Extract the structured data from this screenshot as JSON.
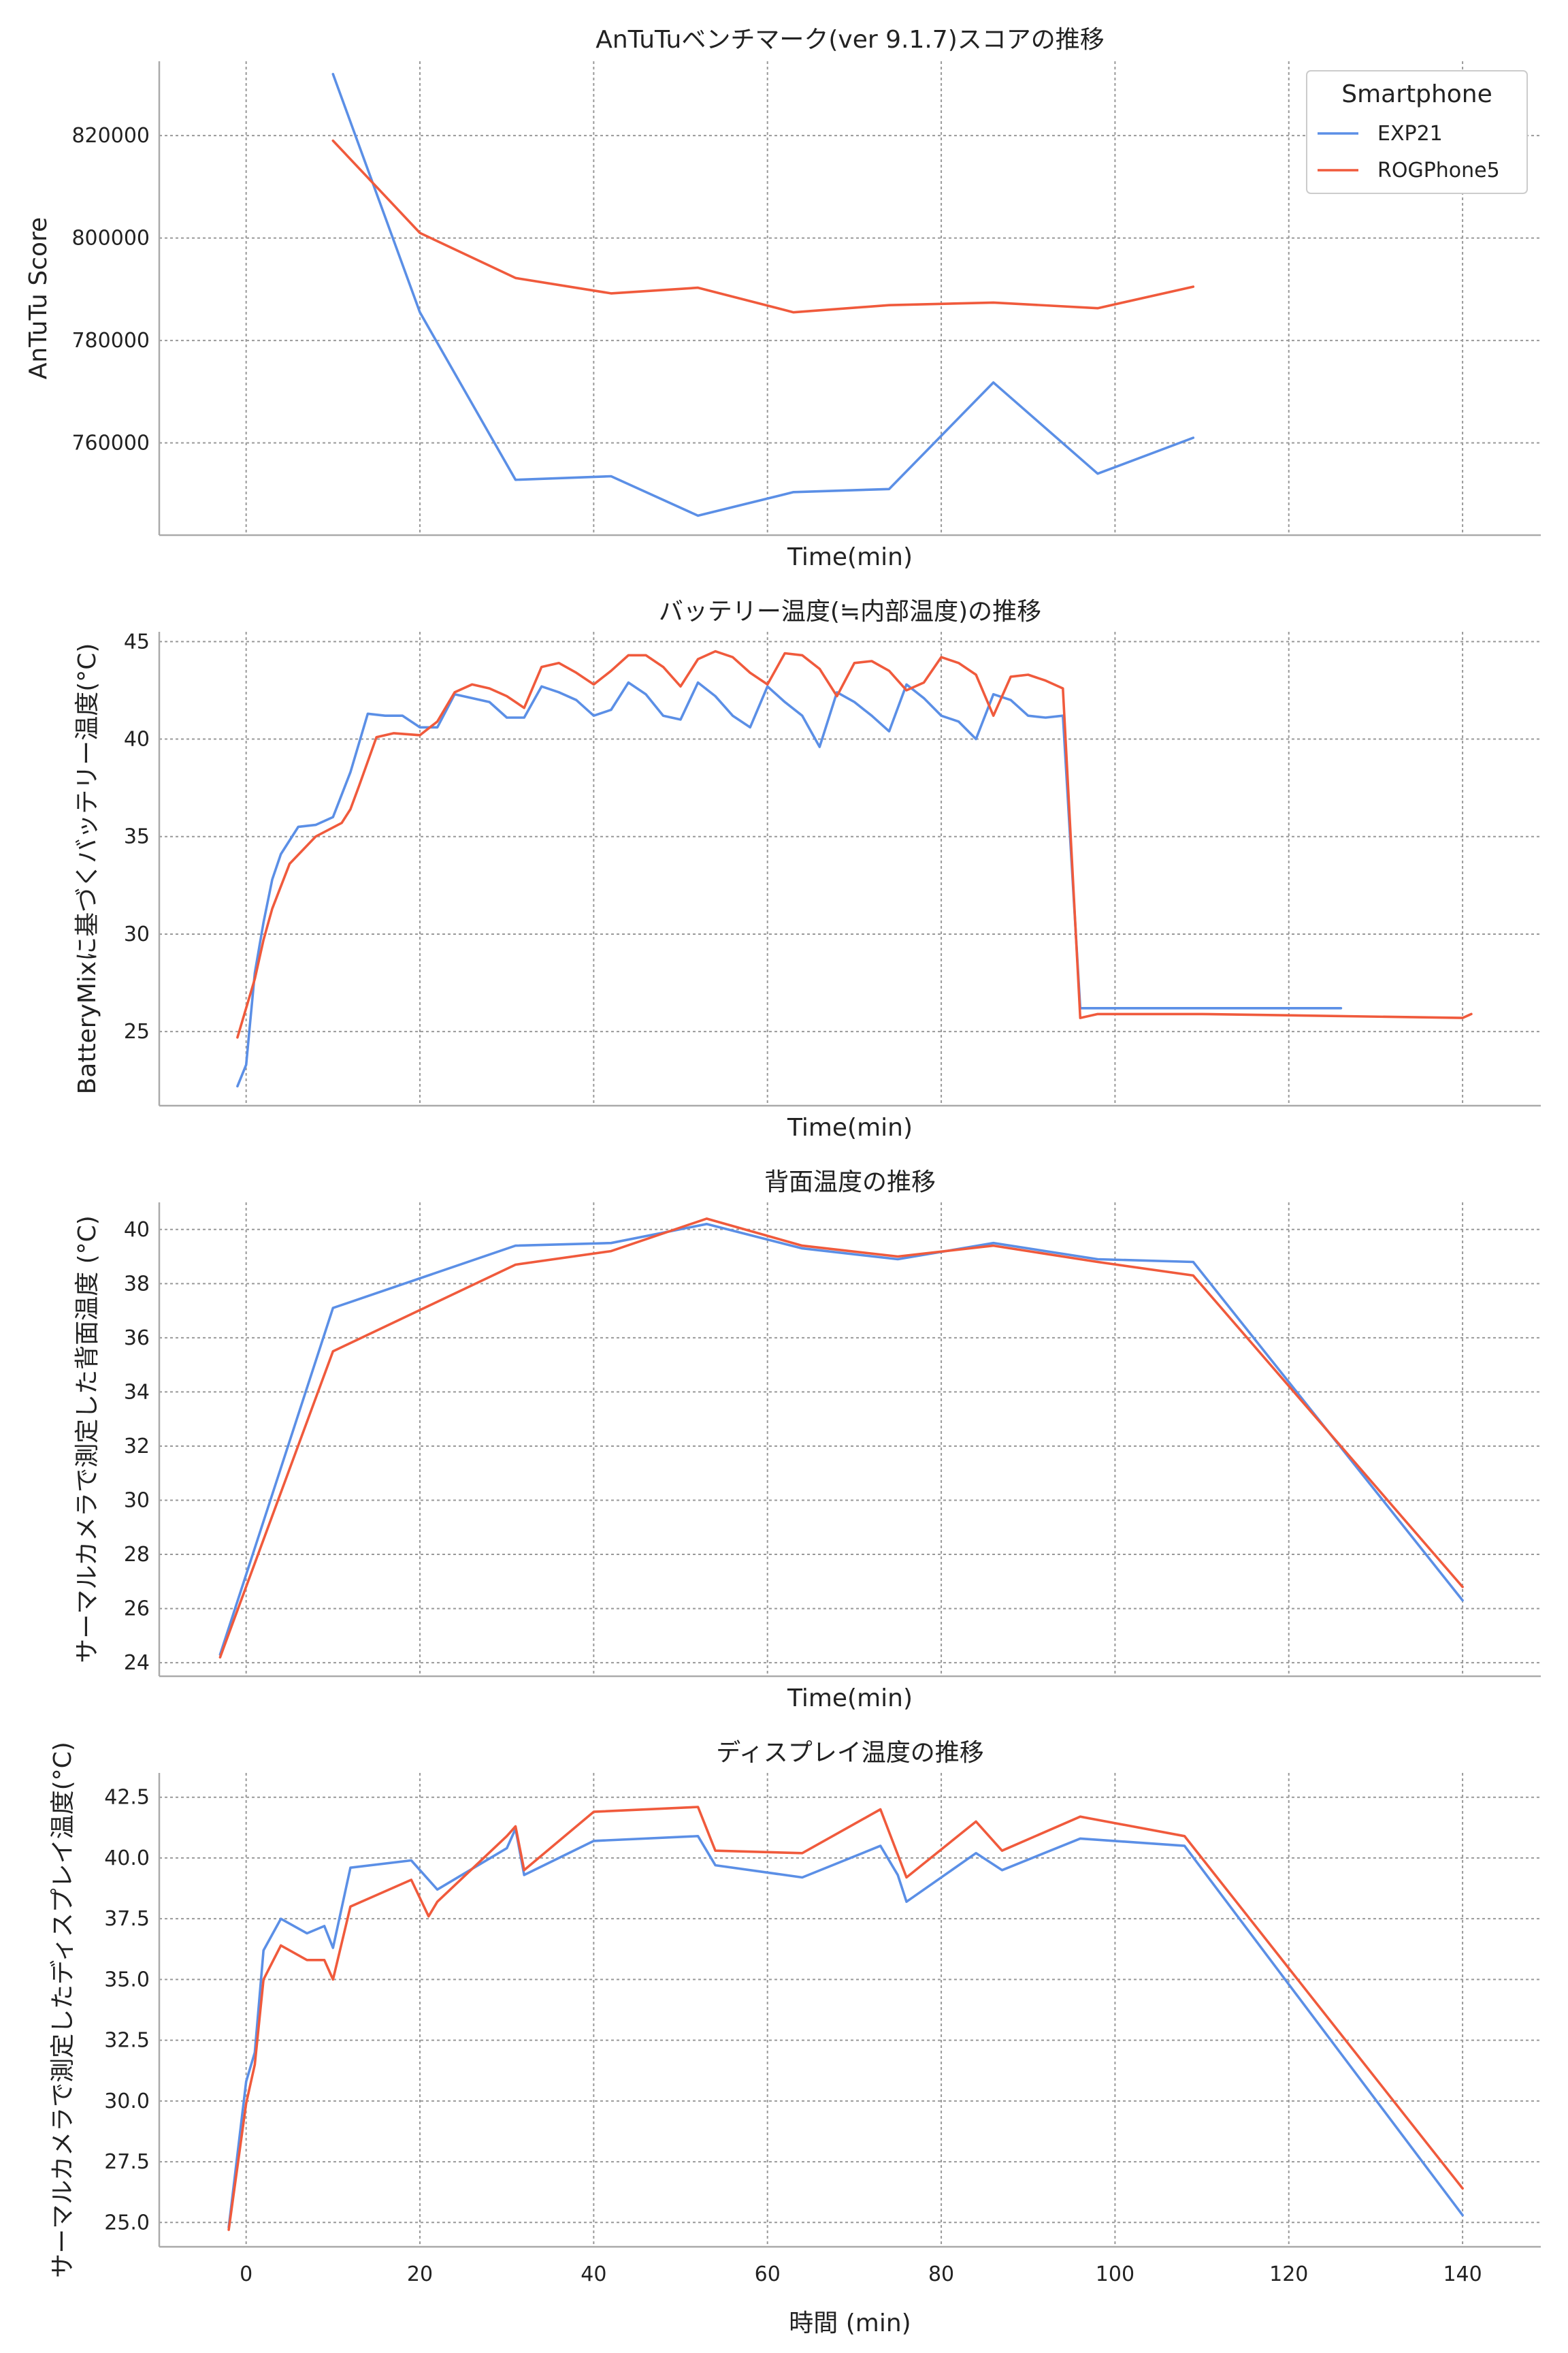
{
  "colors": {
    "EXP21": "#5b8fe6",
    "ROGPhone5": "#f05a3c"
  },
  "x_tick_labels": [
    "0",
    "20",
    "40",
    "60",
    "80",
    "100",
    "120",
    "140"
  ],
  "chart_data": [
    {
      "type": "line",
      "title": "AnTuTuベンチマーク(ver 9.1.7)スコアの推移",
      "xlabel": "Time(min)",
      "ylabel": "AnTuTu Score",
      "xlim": [
        -10,
        149
      ],
      "ylim": [
        742000,
        834500
      ],
      "yticks": [
        760000,
        780000,
        800000,
        820000
      ],
      "ytick_labels": [
        "760000",
        "780000",
        "800000",
        "820000"
      ],
      "grid": true,
      "legend": {
        "title": "Smartphone",
        "placement": "top-right"
      },
      "series": [
        {
          "name": "EXP21",
          "x": [
            10,
            20,
            31,
            42,
            52,
            63,
            74,
            86,
            98,
            109
          ],
          "y": [
            832000,
            785500,
            752800,
            753500,
            745800,
            750400,
            751000,
            771800,
            754000,
            761000
          ]
        },
        {
          "name": "ROGPhone5",
          "x": [
            10,
            20,
            31,
            42,
            52,
            63,
            74,
            86,
            98,
            109
          ],
          "y": [
            819000,
            801000,
            792200,
            789200,
            790300,
            785500,
            786900,
            787400,
            786300,
            790500
          ]
        }
      ]
    },
    {
      "type": "line",
      "title": "バッテリー温度(≒内部温度)の推移",
      "xlabel": "Time(min)",
      "ylabel": "BatteryMixに基づくバッテリー温度(°C)",
      "xlim": [
        -10,
        149
      ],
      "ylim": [
        21.2,
        45.5
      ],
      "yticks": [
        25,
        30,
        35,
        40,
        45
      ],
      "ytick_labels": [
        "25",
        "30",
        "35",
        "40",
        "45"
      ],
      "grid": true,
      "series": [
        {
          "name": "EXP21",
          "x": [
            -1,
            0,
            1,
            2,
            3,
            4,
            6,
            8,
            10,
            12,
            14,
            16,
            18,
            20,
            22,
            24,
            26,
            28,
            30,
            32,
            34,
            36,
            38,
            40,
            42,
            44,
            46,
            48,
            50,
            52,
            54,
            56,
            58,
            60,
            62,
            64,
            66,
            68,
            70,
            72,
            74,
            76,
            78,
            80,
            82,
            84,
            86,
            88,
            90,
            92,
            94,
            96,
            98,
            100,
            102,
            104,
            106,
            108,
            110,
            126
          ],
          "y": [
            22.2,
            23.3,
            28.0,
            30.6,
            32.8,
            34.1,
            35.5,
            35.6,
            36.0,
            38.3,
            41.3,
            41.2,
            41.2,
            40.6,
            40.6,
            42.3,
            42.1,
            41.9,
            41.1,
            41.1,
            42.7,
            42.4,
            42.0,
            41.2,
            41.5,
            42.9,
            42.3,
            41.2,
            41.0,
            42.9,
            42.2,
            41.2,
            40.6,
            42.7,
            41.9,
            41.2,
            39.6,
            42.4,
            41.9,
            41.2,
            40.4,
            42.8,
            42.1,
            41.2,
            40.9,
            40.0,
            42.3,
            42.0,
            41.2,
            41.1,
            41.2,
            26.2,
            26.2,
            26.2,
            26.2,
            26.2,
            26.2,
            26.2,
            26.2,
            26.2
          ]
        },
        {
          "name": "ROGPhone5",
          "x": [
            -1,
            1,
            2,
            3,
            5,
            8,
            11,
            12,
            13,
            15,
            17,
            20,
            22,
            24,
            26,
            28,
            30,
            32,
            34,
            36,
            38,
            40,
            42,
            44,
            46,
            48,
            50,
            52,
            54,
            56,
            58,
            60,
            62,
            64,
            66,
            68,
            70,
            72,
            74,
            76,
            78,
            80,
            82,
            84,
            86,
            88,
            90,
            92,
            94,
            96,
            98,
            100,
            102,
            104,
            106,
            108,
            110,
            140,
            141
          ],
          "y": [
            24.7,
            27.7,
            29.7,
            31.3,
            33.6,
            35.0,
            35.7,
            36.4,
            37.6,
            40.1,
            40.3,
            40.2,
            40.9,
            42.4,
            42.8,
            42.6,
            42.2,
            41.6,
            43.7,
            43.9,
            43.4,
            42.8,
            43.5,
            44.3,
            44.3,
            43.7,
            42.7,
            44.1,
            44.5,
            44.2,
            43.4,
            42.8,
            44.4,
            44.3,
            43.6,
            42.2,
            43.9,
            44.0,
            43.5,
            42.5,
            42.9,
            44.2,
            43.9,
            43.3,
            41.2,
            43.2,
            43.3,
            43.0,
            42.6,
            25.7,
            25.9,
            25.9,
            25.9,
            25.9,
            25.9,
            25.9,
            25.9,
            25.7,
            25.9
          ]
        }
      ]
    },
    {
      "type": "line",
      "title": "背面温度の推移",
      "xlabel": "Time(min)",
      "ylabel": "サーマルカメラで測定した背面温度 (°C)",
      "xlim": [
        -10,
        149
      ],
      "ylim": [
        23.5,
        41.0
      ],
      "yticks": [
        24,
        26,
        28,
        30,
        32,
        34,
        36,
        38,
        40
      ],
      "ytick_labels": [
        "24",
        "26",
        "28",
        "30",
        "32",
        "34",
        "36",
        "38",
        "40"
      ],
      "grid": true,
      "series": [
        {
          "name": "EXP21",
          "x": [
            -3,
            10,
            31,
            42,
            53,
            64,
            75,
            86,
            98,
            109,
            140
          ],
          "y": [
            24.3,
            37.1,
            39.4,
            39.5,
            40.2,
            39.3,
            38.9,
            39.5,
            38.9,
            38.8,
            26.3
          ]
        },
        {
          "name": "ROGPhone5",
          "x": [
            -3,
            10,
            31,
            42,
            53,
            64,
            75,
            86,
            98,
            109,
            140
          ],
          "y": [
            24.2,
            35.5,
            38.7,
            39.2,
            40.4,
            39.4,
            39.0,
            39.4,
            38.8,
            38.3,
            26.8
          ]
        }
      ]
    },
    {
      "type": "line",
      "title": "ディスプレイ温度の推移",
      "xlabel": "時間 (min)",
      "ylabel": "サーマルカメラで測定したディスプレイ温度(°C)",
      "xlim": [
        -10,
        149
      ],
      "ylim": [
        24.0,
        43.5
      ],
      "yticks": [
        25.0,
        27.5,
        30.0,
        32.5,
        35.0,
        37.5,
        40.0,
        42.5
      ],
      "ytick_labels": [
        "25.0",
        "27.5",
        "30.0",
        "32.5",
        "35.0",
        "37.5",
        "40.0",
        "42.5"
      ],
      "grid": true,
      "series": [
        {
          "name": "EXP21",
          "x": [
            -2,
            0,
            1,
            2,
            4,
            7,
            9,
            10,
            12,
            19,
            22,
            30,
            31,
            32,
            40,
            52,
            54,
            64,
            73,
            75,
            76,
            84,
            87,
            96,
            108,
            140
          ],
          "y": [
            24.8,
            30.8,
            32.0,
            36.2,
            37.5,
            36.9,
            37.2,
            36.3,
            39.6,
            39.9,
            38.7,
            40.4,
            41.2,
            39.3,
            40.7,
            40.9,
            39.7,
            39.2,
            40.5,
            39.3,
            38.2,
            40.2,
            39.5,
            40.8,
            40.5,
            25.3
          ]
        },
        {
          "name": "ROGPhone5",
          "x": [
            -2,
            0,
            1,
            2,
            4,
            7,
            9,
            10,
            12,
            19,
            21,
            22,
            30,
            31,
            32,
            40,
            52,
            54,
            64,
            73,
            76,
            84,
            87,
            96,
            108,
            140
          ],
          "y": [
            24.7,
            29.9,
            31.5,
            35.0,
            36.4,
            35.8,
            35.8,
            35.0,
            38.0,
            39.1,
            37.6,
            38.2,
            40.9,
            41.3,
            39.5,
            41.9,
            42.1,
            40.3,
            40.2,
            42.0,
            39.2,
            41.5,
            40.3,
            41.7,
            40.9,
            26.4
          ]
        }
      ]
    }
  ]
}
